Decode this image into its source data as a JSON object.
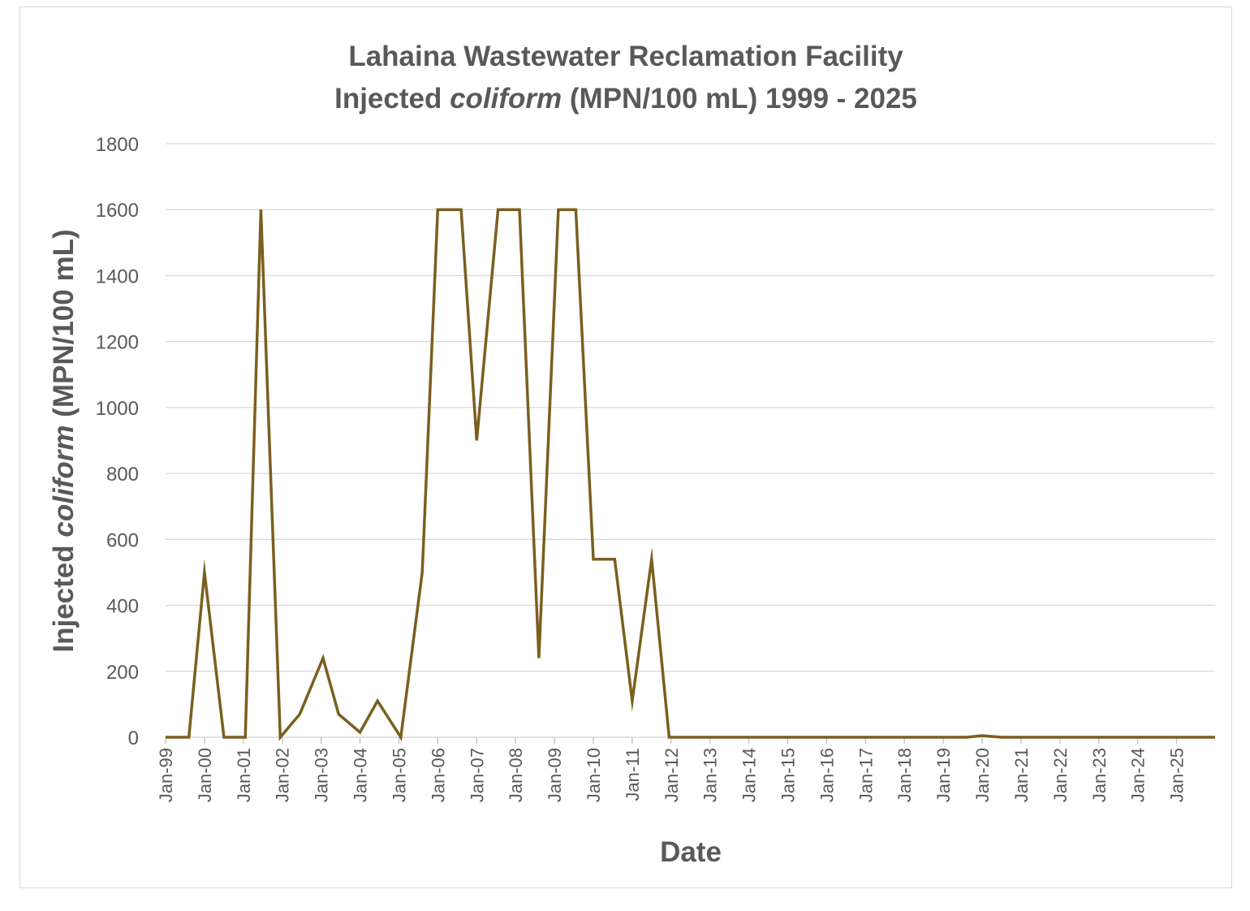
{
  "chart_data": {
    "type": "line",
    "title_line1": "Lahaina Wastewater Reclamation Facility",
    "title_line2_pre": "Injected ",
    "title_line2_italic": "coliform",
    "title_line2_post": " (MPN/100 mL) 1999 - 2025",
    "xlabel": "Date",
    "ylabel_pre": "Injected ",
    "ylabel_italic": "coliform",
    "ylabel_post": " (MPN/100 mL)",
    "ylim": [
      0,
      1800
    ],
    "yticks": [
      0,
      200,
      400,
      600,
      800,
      1000,
      1200,
      1400,
      1600,
      1800
    ],
    "xlim": [
      1999.0,
      2025.99
    ],
    "xticks": [
      {
        "label": "Jan-99",
        "x": 1999
      },
      {
        "label": "Jan-00",
        "x": 2000
      },
      {
        "label": "Jan-01",
        "x": 2001
      },
      {
        "label": "Jan-02",
        "x": 2002
      },
      {
        "label": "Jan-03",
        "x": 2003
      },
      {
        "label": "Jan-04",
        "x": 2004
      },
      {
        "label": "Jan-05",
        "x": 2005
      },
      {
        "label": "Jan-06",
        "x": 2006
      },
      {
        "label": "Jan-07",
        "x": 2007
      },
      {
        "label": "Jan-08",
        "x": 2008
      },
      {
        "label": "Jan-09",
        "x": 2009
      },
      {
        "label": "Jan-10",
        "x": 2010
      },
      {
        "label": "Jan-11",
        "x": 2011
      },
      {
        "label": "Jan-12",
        "x": 2012
      },
      {
        "label": "Jan-13",
        "x": 2013
      },
      {
        "label": "Jan-14",
        "x": 2014
      },
      {
        "label": "Jan-15",
        "x": 2015
      },
      {
        "label": "Jan-16",
        "x": 2016
      },
      {
        "label": "Jan-17",
        "x": 2017
      },
      {
        "label": "Jan-18",
        "x": 2018
      },
      {
        "label": "Jan-19",
        "x": 2019
      },
      {
        "label": "Jan-20",
        "x": 2020
      },
      {
        "label": "Jan-21",
        "x": 2021
      },
      {
        "label": "Jan-22",
        "x": 2022
      },
      {
        "label": "Jan-23",
        "x": 2023
      },
      {
        "label": "Jan-24",
        "x": 2024
      },
      {
        "label": "Jan-25",
        "x": 2025
      }
    ],
    "grid": true,
    "series": [
      {
        "name": "Injected coliform",
        "color": "#7a5f1f",
        "x": [
          1999.0,
          1999.6,
          2000.0,
          2000.5,
          2001.05,
          2001.45,
          2001.95,
          2002.45,
          2003.05,
          2003.45,
          2004.0,
          2004.45,
          2005.05,
          2005.6,
          2006.0,
          2006.6,
          2007.0,
          2007.55,
          2008.1,
          2008.6,
          2009.1,
          2009.55,
          2010.0,
          2010.55,
          2011.0,
          2011.5,
          2011.95,
          2012.5,
          2013.0,
          2014.0,
          2015.0,
          2016.0,
          2017.0,
          2018.0,
          2019.0,
          2019.6,
          2020.0,
          2020.5,
          2021.0,
          2022.0,
          2023.0,
          2024.0,
          2025.0,
          2025.99
        ],
        "values": [
          0,
          0,
          500,
          0,
          0,
          1600,
          0,
          70,
          240,
          70,
          15,
          110,
          0,
          500,
          1600,
          1600,
          900,
          1600,
          1600,
          240,
          1600,
          1600,
          540,
          540,
          110,
          540,
          0,
          0,
          0,
          0,
          0,
          0,
          0,
          0,
          0,
          0,
          5,
          0,
          0,
          0,
          0,
          0,
          0,
          0
        ]
      }
    ]
  }
}
